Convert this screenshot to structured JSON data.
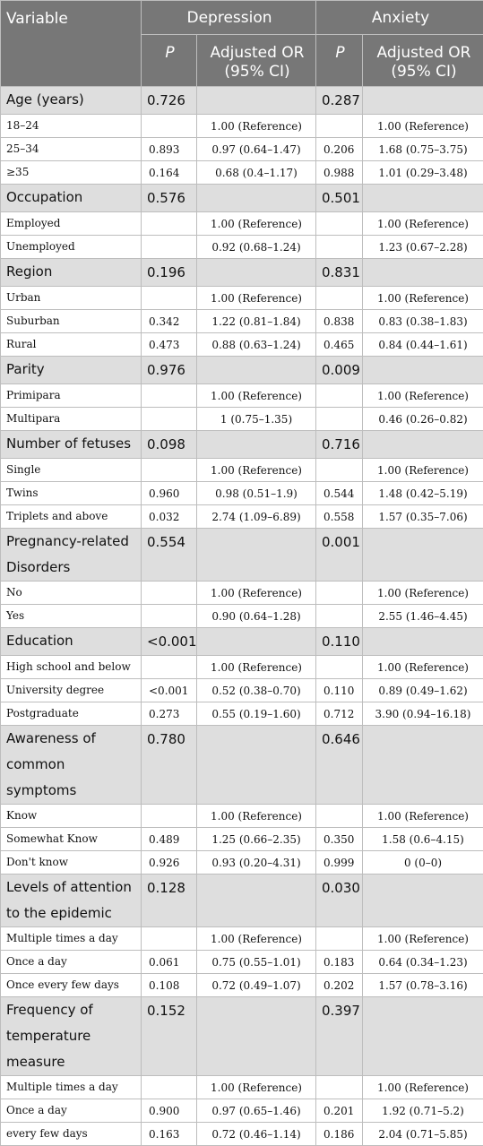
{
  "header": {
    "variable": "Variable",
    "depression": "Depression",
    "anxiety": "Anxiety",
    "p": "P",
    "adjusted_or_line1": "Adjusted OR",
    "adjusted_or_line2": "(95% CI)"
  },
  "sections": [
    {
      "label": "Age (years)",
      "p_dep": "0.726",
      "p_anx": "0.287",
      "rows": [
        {
          "label": "18–24",
          "p_dep": "",
          "or_dep": "1.00 (Reference)",
          "p_anx": "",
          "or_anx": "1.00 (Reference)"
        },
        {
          "label": "25–34",
          "p_dep": "0.893",
          "or_dep": "0.97 (0.64–1.47)",
          "p_anx": "0.206",
          "or_anx": "1.68 (0.75–3.75)"
        },
        {
          "label": "≥35",
          "p_dep": "0.164",
          "or_dep": "0.68 (0.4–1.17)",
          "p_anx": "0.988",
          "or_anx": "1.01 (0.29–3.48)"
        }
      ]
    },
    {
      "label": "Occupation",
      "p_dep": "0.576",
      "p_anx": "0.501",
      "rows": [
        {
          "label": "Employed",
          "p_dep": "",
          "or_dep": "1.00 (Reference)",
          "p_anx": "",
          "or_anx": "1.00 (Reference)"
        },
        {
          "label": "Unemployed",
          "p_dep": "",
          "or_dep": "0.92 (0.68–1.24)",
          "p_anx": "",
          "or_anx": "1.23 (0.67–2.28)"
        }
      ]
    },
    {
      "label": "Region",
      "p_dep": "0.196",
      "p_anx": "0.831",
      "rows": [
        {
          "label": "Urban",
          "p_dep": "",
          "or_dep": "1.00 (Reference)",
          "p_anx": "",
          "or_anx": "1.00 (Reference)"
        },
        {
          "label": "Suburban",
          "p_dep": "0.342",
          "or_dep": "1.22 (0.81–1.84)",
          "p_anx": "0.838",
          "or_anx": "0.83 (0.38–1.83)"
        },
        {
          "label": "Rural",
          "p_dep": "0.473",
          "or_dep": "0.88 (0.63–1.24)",
          "p_anx": "0.465",
          "or_anx": "0.84 (0.44–1.61)"
        }
      ]
    },
    {
      "label": "Parity",
      "p_dep": "0.976",
      "p_anx": "0.009",
      "rows": [
        {
          "label": "Primipara",
          "p_dep": "",
          "or_dep": "1.00 (Reference)",
          "p_anx": "",
          "or_anx": "1.00 (Reference)"
        },
        {
          "label": "Multipara",
          "p_dep": "",
          "or_dep": "1 (0.75–1.35)",
          "p_anx": "",
          "or_anx": "0.46 (0.26–0.82)"
        }
      ]
    },
    {
      "label": "Number of fetuses",
      "p_dep": "0.098",
      "p_anx": "0.716",
      "rows": [
        {
          "label": "Single",
          "p_dep": "",
          "or_dep": "1.00 (Reference)",
          "p_anx": "",
          "or_anx": "1.00 (Reference)"
        },
        {
          "label": "Twins",
          "p_dep": "0.960",
          "or_dep": "0.98 (0.51–1.9)",
          "p_anx": "0.544",
          "or_anx": "1.48 (0.42–5.19)"
        },
        {
          "label": "Triplets and above",
          "p_dep": "0.032",
          "or_dep": "2.74 (1.09–6.89)",
          "p_anx": "0.558",
          "or_anx": "1.57 (0.35–7.06)"
        }
      ]
    },
    {
      "label": "Pregnancy-related Disorders",
      "p_dep": "0.554",
      "p_anx": "0.001",
      "rows": [
        {
          "label": "No",
          "p_dep": "",
          "or_dep": "1.00 (Reference)",
          "p_anx": "",
          "or_anx": "1.00 (Reference)"
        },
        {
          "label": "Yes",
          "p_dep": "",
          "or_dep": "0.90 (0.64–1.28)",
          "p_anx": "",
          "or_anx": "2.55 (1.46–4.45)"
        }
      ]
    },
    {
      "label": "Education",
      "p_dep": "<0.001",
      "p_anx": "0.110",
      "rows": [
        {
          "label": "High school and below",
          "p_dep": "",
          "or_dep": "1.00 (Reference)",
          "p_anx": "",
          "or_anx": "1.00 (Reference)"
        },
        {
          "label": "University degree",
          "p_dep": "<0.001",
          "or_dep": "0.52 (0.38–0.70)",
          "p_anx": "0.110",
          "or_anx": "0.89 (0.49–1.62)"
        },
        {
          "label": "Postgraduate",
          "p_dep": "0.273",
          "or_dep": "0.55 (0.19–1.60)",
          "p_anx": "0.712",
          "or_anx": "3.90 (0.94–16.18)"
        }
      ]
    },
    {
      "label": "Awareness of common symptoms",
      "p_dep": "0.780",
      "p_anx": "0.646",
      "rows": [
        {
          "label": "Know",
          "p_dep": "",
          "or_dep": "1.00 (Reference)",
          "p_anx": "",
          "or_anx": "1.00 (Reference)"
        },
        {
          "label": "Somewhat Know",
          "p_dep": "0.489",
          "or_dep": "1.25 (0.66–2.35)",
          "p_anx": "0.350",
          "or_anx": "1.58 (0.6–4.15)"
        },
        {
          "label": "Don't know",
          "p_dep": "0.926",
          "or_dep": "0.93 (0.20–4.31)",
          "p_anx": "0.999",
          "or_anx": "0 (0–0)"
        }
      ]
    },
    {
      "label": "Levels of attention to the epidemic",
      "p_dep": "0.128",
      "p_anx": "0.030",
      "rows": [
        {
          "label": "Multiple times a day",
          "p_dep": "",
          "or_dep": "1.00 (Reference)",
          "p_anx": "",
          "or_anx": "1.00 (Reference)"
        },
        {
          "label": "Once a day",
          "p_dep": "0.061",
          "or_dep": "0.75 (0.55–1.01)",
          "p_anx": "0.183",
          "or_anx": "0.64 (0.34–1.23)"
        },
        {
          "label": "Once every few days",
          "p_dep": "0.108",
          "or_dep": "0.72 (0.49–1.07)",
          "p_anx": "0.202",
          "or_anx": "1.57 (0.78–3.16)"
        }
      ]
    },
    {
      "label": "Frequency of temperature measure",
      "p_dep": "0.152",
      "p_anx": "0.397",
      "rows": [
        {
          "label": "Multiple times a day",
          "p_dep": "",
          "or_dep": "1.00 (Reference)",
          "p_anx": "",
          "or_anx": "1.00 (Reference)"
        },
        {
          "label": "Once a day",
          "p_dep": "0.900",
          "or_dep": "0.97 (0.65–1.46)",
          "p_anx": "0.201",
          "or_anx": "1.92 (0.71–5.2)"
        },
        {
          "label": "every few days",
          "p_dep": "0.163",
          "or_dep": "0.72 (0.46–1.14)",
          "p_anx": "0.186",
          "or_anx": "2.04 (0.71–5.85)"
        }
      ]
    }
  ]
}
